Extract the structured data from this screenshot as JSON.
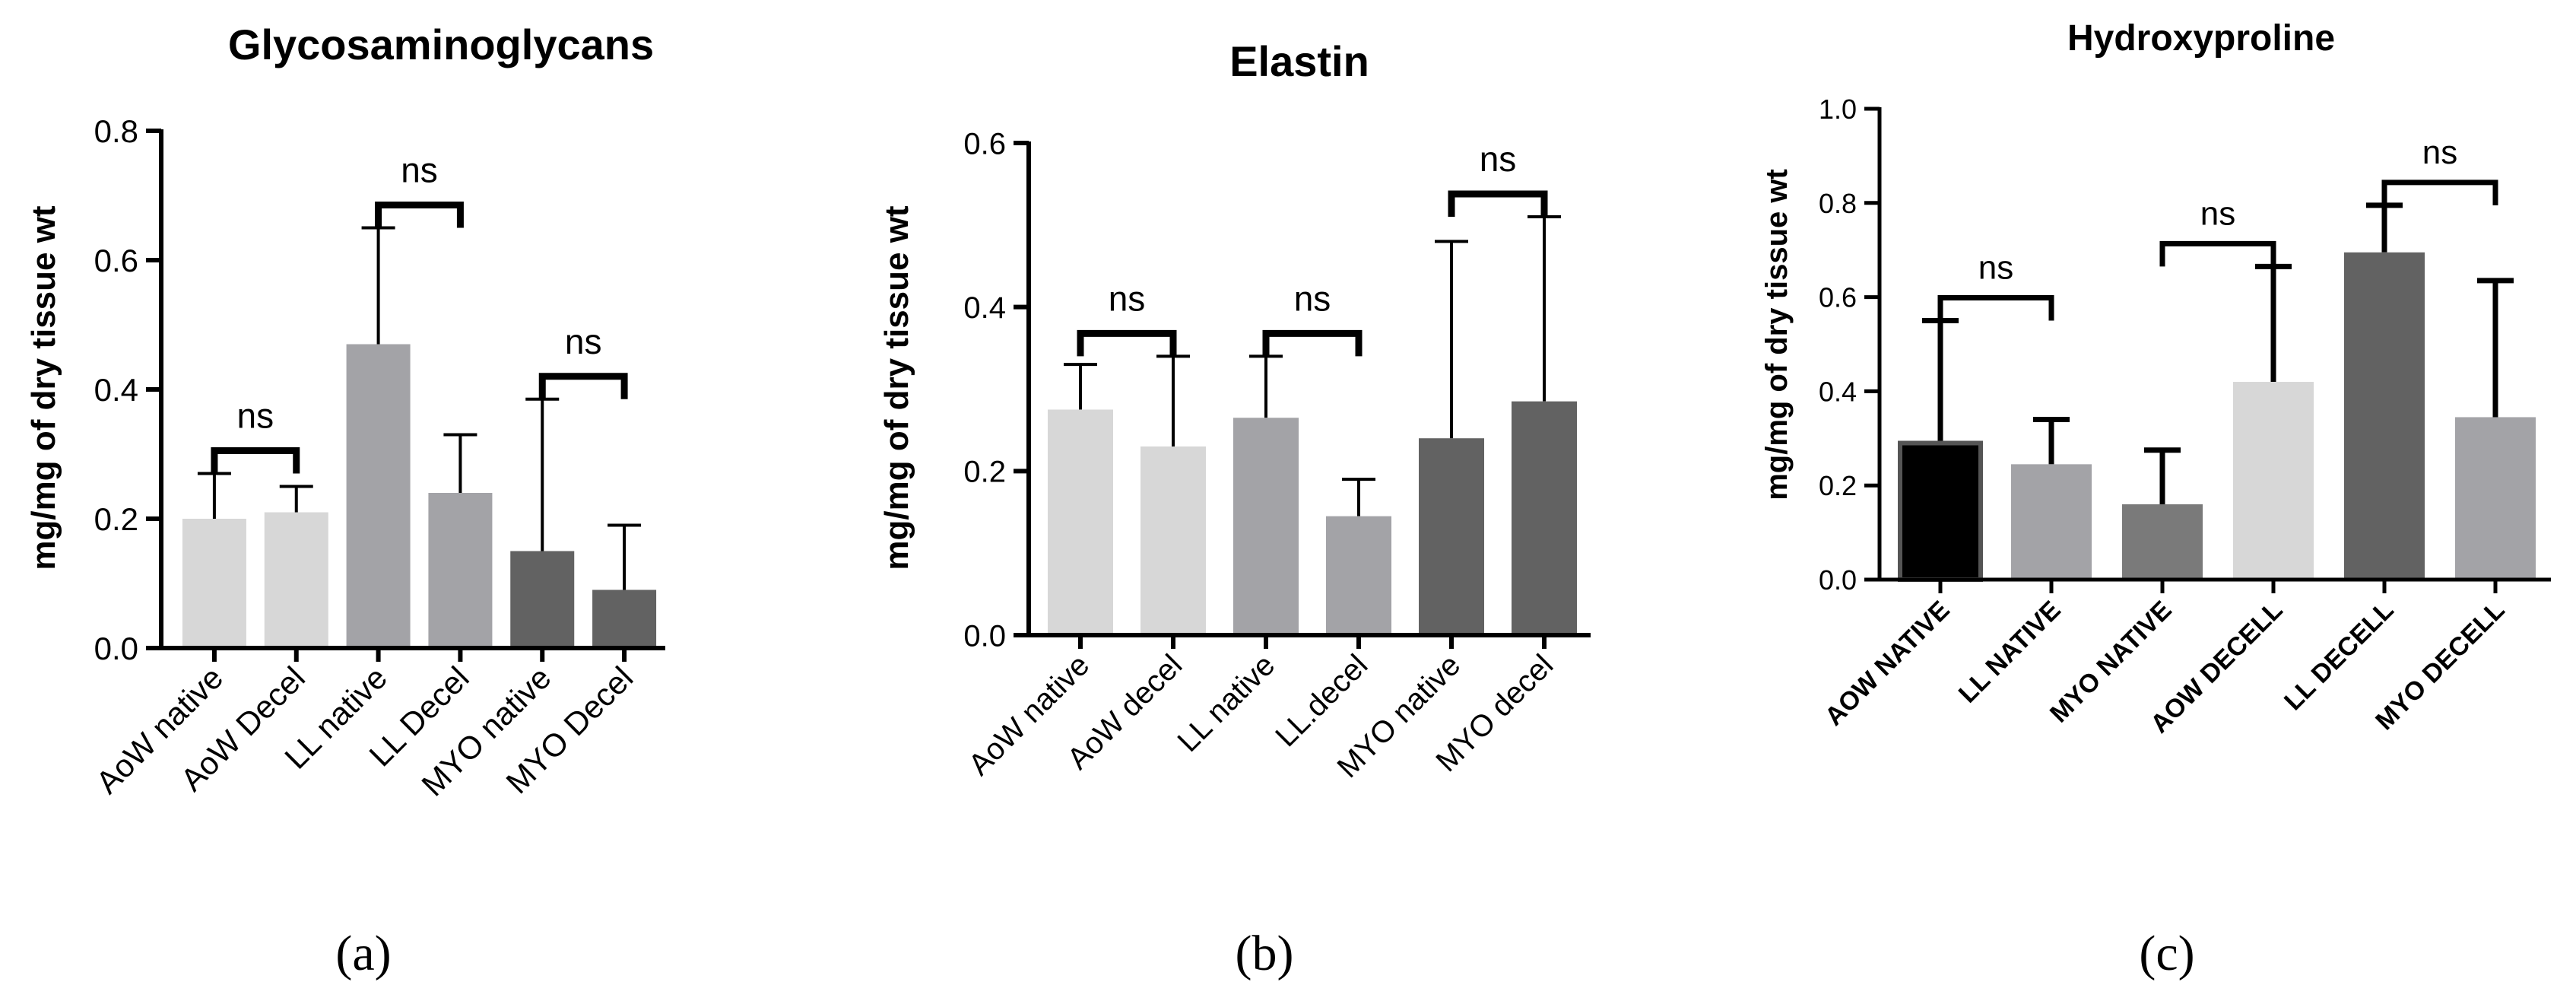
{
  "chart_data": [
    {
      "type": "bar",
      "title": "Glycosaminoglycans",
      "ylabel": "mg/mg of dry tissue wt",
      "xlabel": "",
      "ylim": [
        0,
        0.8
      ],
      "yticks": [
        "0.0",
        "0.2",
        "0.4",
        "0.6",
        "0.8"
      ],
      "categories": [
        "AoW native",
        "AoW Decel",
        "LL native",
        "LL Decel",
        "MYO native",
        "MYO Decel"
      ],
      "values": [
        0.2,
        0.21,
        0.47,
        0.24,
        0.15,
        0.09
      ],
      "errors": [
        0.07,
        0.04,
        0.18,
        0.09,
        0.235,
        0.1
      ],
      "colors": [
        "#d7d7d7",
        "#d7d7d7",
        "#a3a3a7",
        "#a3a3a7",
        "#626262",
        "#626262"
      ],
      "significance": [
        {
          "from": 0,
          "to": 1,
          "label": "ns"
        },
        {
          "from": 2,
          "to": 3,
          "label": "ns"
        },
        {
          "from": 4,
          "to": 5,
          "label": "ns"
        }
      ],
      "panel_label": "(a)",
      "grid": false
    },
    {
      "type": "bar",
      "title": "Elastin",
      "ylabel": "mg/mg of dry tissue wt",
      "xlabel": "",
      "ylim": [
        0,
        0.6
      ],
      "yticks": [
        "0.0",
        "0.2",
        "0.4",
        "0.6"
      ],
      "categories": [
        "AoW native",
        "AoW decel",
        "LL native",
        "LL.decel",
        "MYO native",
        "MYO decel"
      ],
      "values": [
        0.275,
        0.23,
        0.265,
        0.145,
        0.24,
        0.285
      ],
      "errors": [
        0.055,
        0.11,
        0.075,
        0.045,
        0.24,
        0.225
      ],
      "colors": [
        "#d7d7d7",
        "#d7d7d7",
        "#a3a3a7",
        "#a3a3a7",
        "#626262",
        "#626262"
      ],
      "significance": [
        {
          "from": 0,
          "to": 1,
          "label": "ns"
        },
        {
          "from": 2,
          "to": 3,
          "label": "ns"
        },
        {
          "from": 4,
          "to": 5,
          "label": "ns"
        }
      ],
      "panel_label": "(b)",
      "grid": false
    },
    {
      "type": "bar",
      "title": "Hydroxyproline",
      "ylabel": "mg/mg of dry tissue wt",
      "xlabel": "",
      "ylim": [
        0,
        1.0
      ],
      "yticks": [
        "0.0",
        "0.2",
        "0.4",
        "0.6",
        "0.8",
        "1.0"
      ],
      "categories": [
        "AOW NATIVE",
        "LL NATIVE",
        "MYO NATIVE",
        "AOW DECELL",
        "LL DECELL",
        "MYO DECELL"
      ],
      "values": [
        0.29,
        0.245,
        0.16,
        0.42,
        0.695,
        0.345
      ],
      "errors": [
        0.26,
        0.095,
        0.115,
        0.245,
        0.1,
        0.29
      ],
      "colors": [
        "#000000",
        "#a3a3a7",
        "#7a7a7a",
        "#d7d7d7",
        "#626262",
        "#a3a3a7"
      ],
      "significance": [
        {
          "from": 0,
          "to": 1,
          "label": "ns"
        },
        {
          "from": 2,
          "to": 3,
          "label": "ns"
        },
        {
          "from": 4,
          "to": 5,
          "label": "ns"
        }
      ],
      "panel_label": "(c)",
      "grid": false
    }
  ]
}
